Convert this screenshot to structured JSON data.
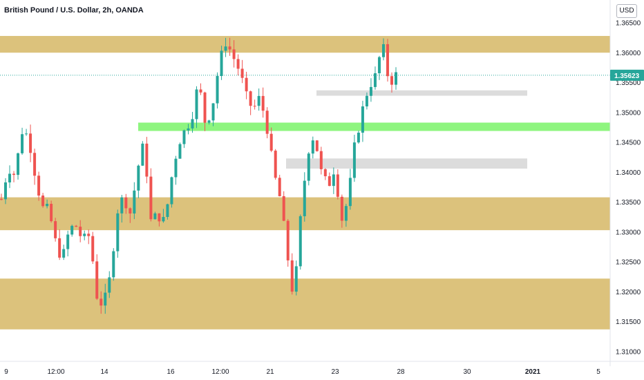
{
  "symbol_title": "British Pound / U.S. Dollar, 2h, OANDA",
  "currency_button": "USD",
  "price_label": "1.35623",
  "colors": {
    "up": "#26a69a",
    "down": "#ef5350",
    "zone_gold": "#dcc27c",
    "zone_green": "#8ef57f",
    "zone_gray": "#dcdcdc",
    "price_line": "#26a69a",
    "price_tag": "#26a69a"
  },
  "chart_data": {
    "type": "candlestick",
    "title": "British Pound / U.S. Dollar, 2h, OANDA",
    "y_axis": {
      "ticks": [
        "1.36500",
        "1.36000",
        "1.35500",
        "1.35000",
        "1.34500",
        "1.34000",
        "1.33500",
        "1.33000",
        "1.32500",
        "1.32000",
        "1.31500",
        "1.31000"
      ],
      "range": [
        1.3085,
        1.367
      ]
    },
    "x_axis": {
      "ticks": [
        "9",
        "12:00",
        "14",
        "16",
        "12:00",
        "21",
        "23",
        "28",
        "30",
        "2021",
        "5"
      ]
    },
    "last_price": 1.35623,
    "zones": [
      {
        "kind": "supply",
        "color": "gold",
        "from": 1.36,
        "to": 1.3628
      },
      {
        "kind": "support",
        "color": "green",
        "from": 1.3469,
        "to": 1.3483
      },
      {
        "kind": "gray",
        "color": "gray",
        "from": 1.3528,
        "to": 1.3537
      },
      {
        "kind": "gray",
        "color": "gray",
        "from": 1.3406,
        "to": 1.3423
      },
      {
        "kind": "demand",
        "color": "gold",
        "from": 1.3303,
        "to": 1.3358
      },
      {
        "kind": "demand",
        "color": "gold",
        "from": 1.3137,
        "to": 1.3222
      }
    ],
    "path": [
      1.3355,
      1.341,
      1.3395,
      1.347,
      1.346,
      1.3395,
      1.334,
      1.3335,
      1.328,
      1.3255,
      1.3305,
      1.331,
      1.3285,
      1.3295,
      1.3195,
      1.3175,
      1.3225,
      1.3335,
      1.336,
      1.333,
      1.3405,
      1.345,
      1.3315,
      1.333,
      1.3315,
      1.339,
      1.345,
      1.347,
      1.3495,
      1.355,
      1.348,
      1.351,
      1.358,
      1.362,
      1.3595,
      1.357,
      1.3525,
      1.3505,
      1.3525,
      1.348,
      1.34,
      1.3355,
      1.3265,
      1.3185,
      1.3325,
      1.3435,
      1.3465,
      1.34,
      1.3375,
      1.341,
      1.332,
      1.3355,
      1.345,
      1.35,
      1.3545,
      1.356,
      1.3615,
      1.355,
      1.3562
    ]
  }
}
